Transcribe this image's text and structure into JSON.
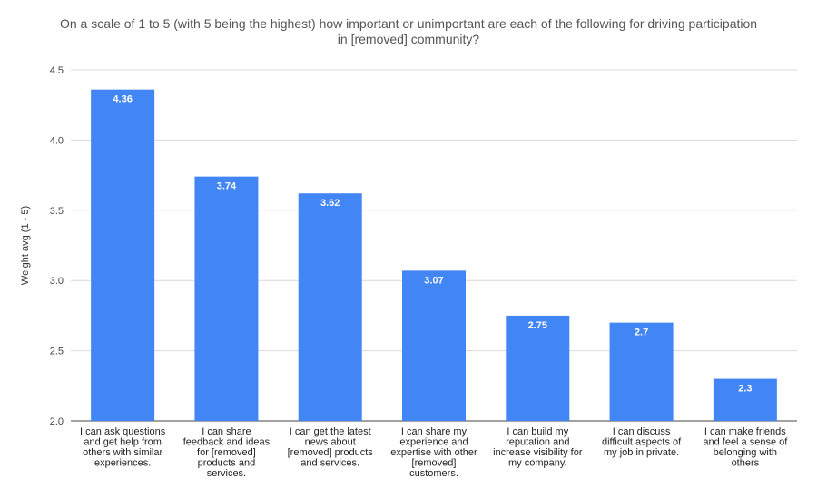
{
  "chart_data": {
    "type": "bar",
    "title_lines": [
      "On a scale of 1 to 5 (with 5 being the highest) how important or unimportant are each of the following for driving participation",
      "in [removed] community?"
    ],
    "ylabel": "Weight avg (1 - 5)",
    "xlabel": "",
    "ylim": [
      2.0,
      4.5
    ],
    "yticks": [
      "2.0",
      "2.5",
      "3.0",
      "3.5",
      "4.0",
      "4.5"
    ],
    "grid": true,
    "legend": "none",
    "bar_color": "#4285f4",
    "categories": [
      [
        "I can ask questions",
        "and get help from",
        "others with similar",
        "experiences."
      ],
      [
        "I can share",
        "feedback and ideas",
        "for [removed]",
        "products and",
        "services."
      ],
      [
        "I can get the latest",
        "news about",
        "[removed] products",
        "and services."
      ],
      [
        "I can share my",
        "experience and",
        "expertise with other",
        "[removed]",
        "customers."
      ],
      [
        "I can build my",
        "reputation and",
        "increase visibility for",
        "my company."
      ],
      [
        "I can discuss",
        "difficult aspects of",
        "my job in private."
      ],
      [
        "I can make friends",
        "and feel a sense of",
        "belonging with",
        "others"
      ]
    ],
    "values": [
      4.36,
      3.74,
      3.62,
      3.07,
      2.75,
      2.7,
      2.3
    ],
    "data_labels": [
      "4.36",
      "3.74",
      "3.62",
      "3.07",
      "2.75",
      "2.7",
      "2.3"
    ]
  }
}
